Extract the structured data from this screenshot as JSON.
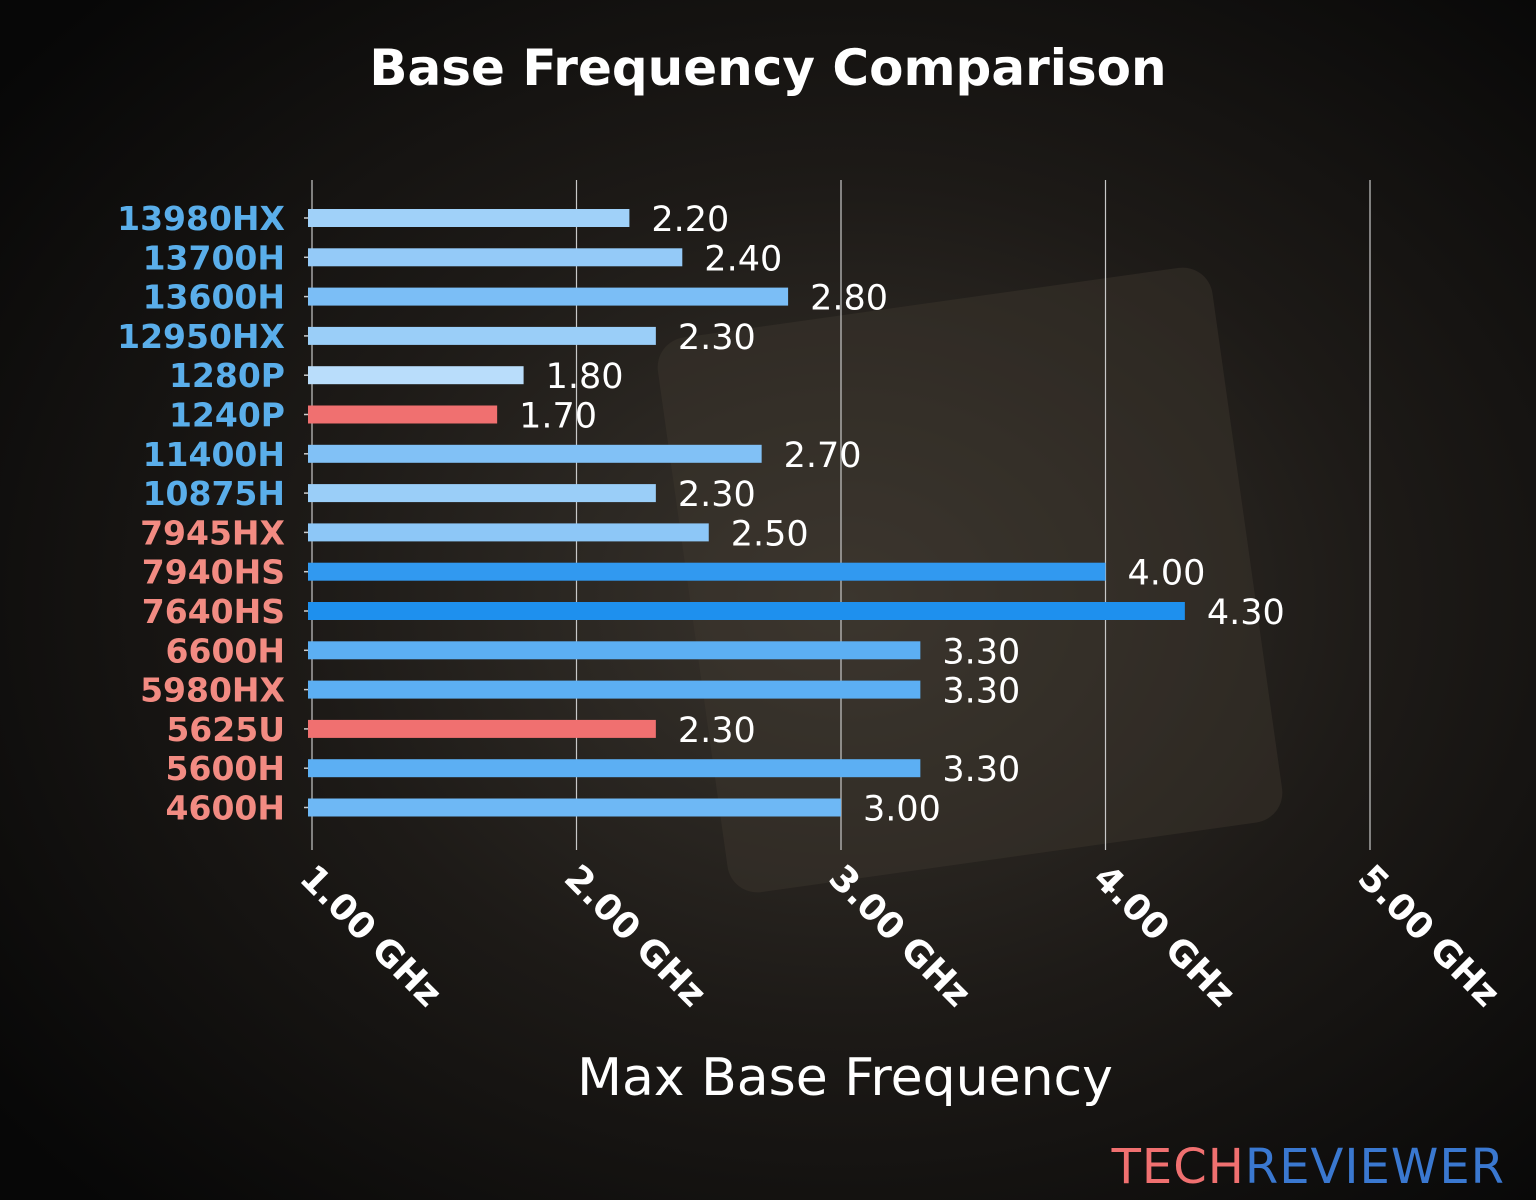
{
  "chart_data": {
    "type": "bar",
    "orientation": "horizontal",
    "title": "Base Frequency Comparison",
    "xlabel": "Max Base Frequency",
    "ylabel": "",
    "xlim": [
      1.0,
      5.0
    ],
    "xticks": [
      1,
      2,
      3,
      4,
      5
    ],
    "xtick_labels": [
      "1.00 GHz",
      "2.00 GHz",
      "3.00 GHz",
      "4.00 GHz",
      "5.00 GHz"
    ],
    "grid": "vertical",
    "categories": [
      "13980HX",
      "13700H",
      "13600H",
      "12950HX",
      "1280P",
      "1240P",
      "11400H",
      "10875H",
      "7945HX",
      "7940HS",
      "7640HS",
      "6600H",
      "5980HX",
      "5625U",
      "5600H",
      "4600H"
    ],
    "values": [
      2.2,
      2.4,
      2.8,
      2.3,
      1.8,
      1.7,
      2.7,
      2.3,
      2.5,
      4.0,
      4.3,
      3.3,
      3.3,
      2.3,
      3.3,
      3.0
    ],
    "value_labels": [
      "2.20",
      "2.40",
      "2.80",
      "2.30",
      "1.80",
      "1.70",
      "2.70",
      "2.30",
      "2.50",
      "4.00",
      "4.30",
      "3.30",
      "3.30",
      "2.30",
      "3.30",
      "3.00"
    ],
    "highlighted": [
      "1240P",
      "5625U"
    ],
    "category_groups": [
      "intel",
      "intel",
      "intel",
      "intel",
      "intel",
      "intel",
      "intel",
      "intel",
      "amd",
      "amd",
      "amd",
      "amd",
      "amd",
      "amd",
      "amd",
      "amd"
    ]
  },
  "colors": {
    "intel_label": "#5aaeea",
    "amd_label": "#f28b82",
    "highlight_bar": "#f07070",
    "bar_low": "#bfe0fb",
    "bar_high": "#1e90ee",
    "text": "#ffffff",
    "grid": "#c8c8c8"
  },
  "watermark": {
    "part1": "TECH",
    "part2": "REVIEWER",
    "color1": "#f07070",
    "color2": "#3a78d0"
  }
}
